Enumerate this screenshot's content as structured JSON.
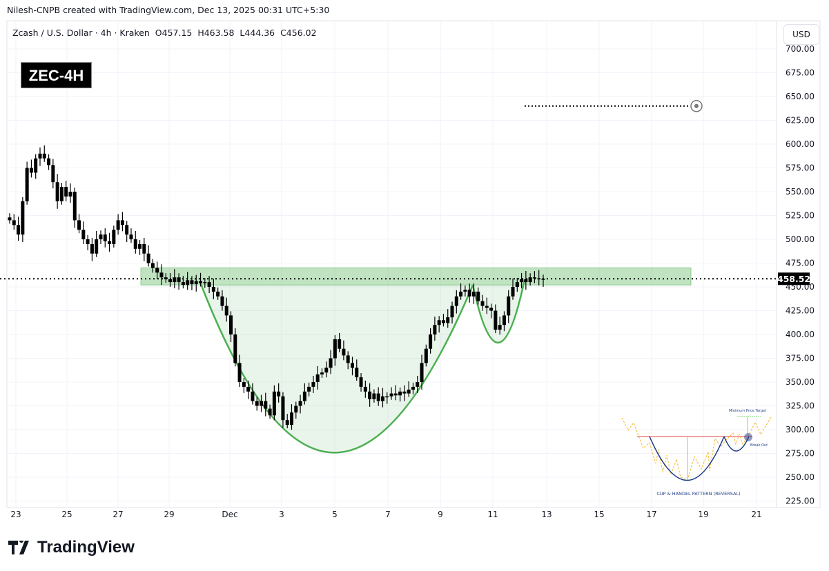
{
  "header": {
    "attribution": "Nilesh-CNPB created with TradingView.com, Dec 13, 2025 00:31 UTC+5:30"
  },
  "legend": {
    "symbol": "Zcash / U.S. Dollar · 4h · Kraken",
    "open": "O457.15",
    "high": "H463.58",
    "low": "L444.36",
    "close": "C456.02"
  },
  "badge": "ZEC-4H",
  "currency_button": "USD",
  "brand": "TradingView",
  "colors": {
    "candle": "#000000",
    "zone": "#4caf50",
    "cup_line": "#4caf50",
    "grid": "#f0f3fa"
  },
  "chart_data": {
    "type": "candlestick",
    "title": "",
    "ylim": [
      225,
      700
    ],
    "y_ticks": [
      "700.00",
      "675.00",
      "650.00",
      "625.00",
      "600.00",
      "575.00",
      "550.00",
      "525.00",
      "500.00",
      "475.00",
      "450.00",
      "425.00",
      "400.00",
      "375.00",
      "350.00",
      "325.00",
      "300.00",
      "275.00",
      "250.00",
      "225.00"
    ],
    "x_ticks": [
      "23",
      "25",
      "27",
      "29",
      "Dec",
      "3",
      "5",
      "7",
      "9",
      "11",
      "13",
      "15",
      "17",
      "19",
      "21"
    ],
    "last_price": "458.52",
    "closes": [
      520,
      515,
      505,
      540,
      575,
      570,
      585,
      590,
      585,
      578,
      560,
      540,
      555,
      545,
      550,
      520,
      510,
      500,
      495,
      485,
      500,
      505,
      498,
      495,
      510,
      520,
      515,
      505,
      500,
      490,
      495,
      485,
      475,
      470,
      465,
      460,
      458,
      455,
      460,
      455,
      452,
      457,
      453,
      456,
      454,
      455,
      450,
      445,
      440,
      430,
      420,
      400,
      370,
      350,
      345,
      340,
      330,
      325,
      330,
      322,
      315,
      340,
      335,
      310,
      305,
      318,
      325,
      330,
      340,
      345,
      350,
      358,
      360,
      365,
      375,
      395,
      385,
      378,
      370,
      365,
      355,
      345,
      340,
      332,
      338,
      330,
      335,
      335,
      338,
      336,
      340,
      338,
      342,
      345,
      350,
      370,
      385,
      400,
      410,
      415,
      412,
      418,
      430,
      440,
      445,
      447,
      440,
      445,
      435,
      430,
      428,
      425,
      405,
      410,
      420,
      440,
      450,
      455,
      458,
      455,
      460,
      459,
      458,
      458.52
    ],
    "resistance_zone": [
      452,
      470
    ],
    "target_price": 640,
    "cup_low": 278,
    "handle_low": 390
  },
  "inset": {
    "title": "CUP & HANDEL PATTERN (REVERSAL)",
    "target_label": "Minimum Price Target",
    "breakout_label": "Break Out"
  }
}
